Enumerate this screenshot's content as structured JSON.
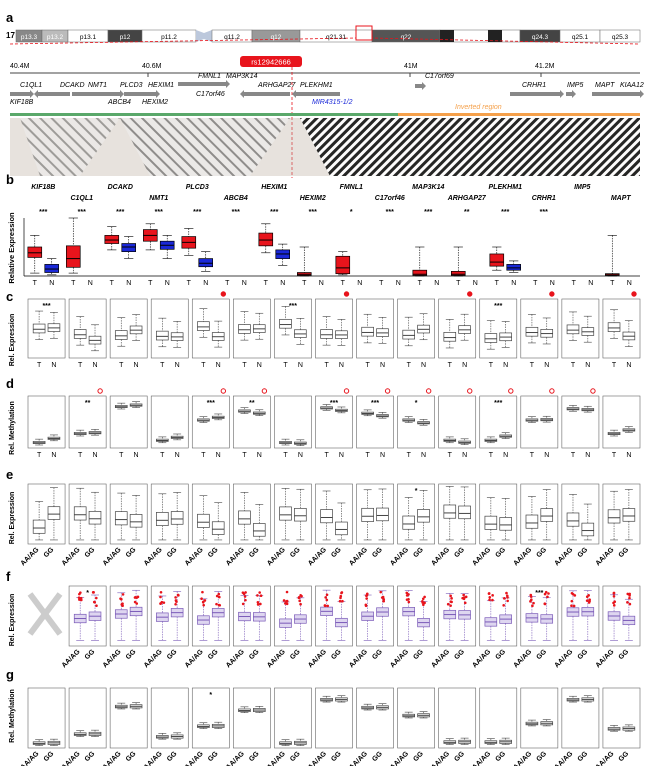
{
  "panel_letters": [
    "a",
    "b",
    "c",
    "d",
    "e",
    "f",
    "g"
  ],
  "chromosome": {
    "number": "17",
    "bands": [
      "p13.3",
      "p13.2",
      "p13.1",
      "p12",
      "p11.2",
      "q11.2",
      "q12",
      "q21.31",
      "q22",
      "q24.3",
      "q25.1",
      "q25.3"
    ],
    "coords": [
      "40.4M",
      "40.6M",
      "41M",
      "41.2M"
    ],
    "snp": "rs12942666",
    "inverted_label": "Inverted region"
  },
  "genes_track_top": [
    "C1QL1",
    "DCAKD",
    "NMT1",
    "PLCD3",
    "HEXIM1",
    "FMNL1",
    "MAP3K14",
    "ARHGAP27",
    "PLEKHM1",
    "C17orf69",
    "CRHR1",
    "IMP5",
    "MAPT",
    "KIAA12"
  ],
  "genes_track_bottom": [
    "KIF18B",
    "ABCB4",
    "HEXIM2",
    "C17orf46",
    "MIR4315-1/2"
  ],
  "panel_b": {
    "ylabel": "Relative Expression",
    "genes_upper": [
      "KIF18B",
      "DCAKD",
      "PLCD3",
      "HEXIM1",
      "FMNL1",
      "MAP3K14",
      "PLEKHM1",
      "IMP5"
    ],
    "genes_lower": [
      "C1QL1",
      "NMT1",
      "ABCB4",
      "HEXIM2",
      "C17orf46",
      "ARHGAP27",
      "CRHR1",
      "MAPT"
    ],
    "sig": [
      "***",
      "***",
      "***",
      "***",
      "***",
      "***",
      "***",
      "***",
      "*",
      "***",
      "***",
      "**",
      "***",
      "***"
    ],
    "tn": [
      "T",
      "N"
    ]
  },
  "panel_c": {
    "ylabel": "Rel. Expression",
    "stars": [
      "***",
      "***",
      "***"
    ]
  },
  "panel_d": {
    "ylabel": "Rel. Methylation",
    "stars": [
      "**",
      "***",
      "**",
      "***",
      "***",
      "*",
      "***"
    ]
  },
  "panel_e": {
    "ylabel": "Rel. Expression",
    "stars": [
      "*"
    ]
  },
  "panel_f": {
    "ylabel": "Rel. Expression",
    "stars": [
      "*",
      "***"
    ]
  },
  "panel_g": {
    "ylabel": "Rel. Methylation",
    "stars": [
      "*"
    ]
  },
  "genotype_labels": [
    "AA/AG",
    "GG"
  ],
  "colors": {
    "tumor": "#e8141c",
    "normal": "#1a28d8",
    "snp": "#e8141c",
    "inverted": "#f5a04a",
    "green": "#5aa86a",
    "purple": "#8a5ec8"
  }
}
